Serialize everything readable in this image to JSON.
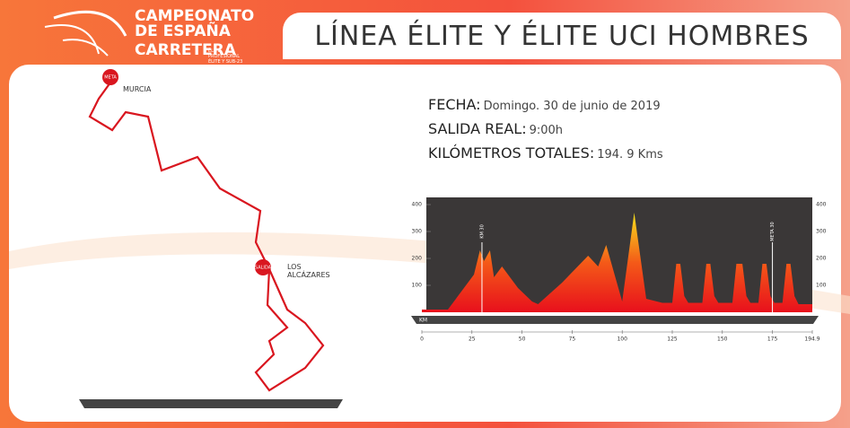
{
  "header": {
    "brand_line1": "CAMPEONATO",
    "brand_line2": "DE ESPAÑA",
    "brand_line3": "CARRETERA",
    "brand_sub": "ÉLITE PROFESIONAL ÉLITE Y SUB-23",
    "title": "LÍNEA ÉLITE Y ÉLITE UCI HOMBRES"
  },
  "info": [
    {
      "label": "FECHA:",
      "value": "Domingo. 30 de junio de 2019"
    },
    {
      "label": "SALIDA REAL:",
      "value": "9:00h"
    },
    {
      "label": "KILÓMETROS TOTALES:",
      "value": "194. 9 Kms"
    }
  ],
  "map": {
    "finish_marker": "META",
    "finish_city": "MURCIA",
    "start_marker": "SALIDA",
    "start_city": "LOS ALCÁZARES"
  },
  "chart_data": {
    "type": "area",
    "axis_label": "KM",
    "x": [
      0,
      2,
      13,
      22,
      26,
      29,
      31,
      34,
      36,
      40,
      48,
      55,
      58,
      70,
      83,
      88,
      92,
      100,
      106,
      112,
      120,
      125,
      127,
      129,
      131,
      133,
      140,
      142,
      144,
      146,
      148,
      155,
      157,
      160,
      162,
      164,
      168,
      170,
      172,
      174,
      176,
      180,
      182,
      184,
      186,
      188,
      194.9
    ],
    "values": [
      10,
      10,
      10,
      100,
      140,
      230,
      190,
      230,
      130,
      170,
      90,
      40,
      30,
      110,
      210,
      170,
      250,
      40,
      370,
      50,
      35,
      35,
      180,
      180,
      60,
      35,
      35,
      180,
      180,
      60,
      35,
      35,
      180,
      180,
      60,
      35,
      35,
      180,
      180,
      60,
      35,
      35,
      180,
      180,
      60,
      30,
      30
    ],
    "xlim": [
      0,
      194.9
    ],
    "xticks": [
      0,
      25,
      50,
      75,
      100,
      125,
      150,
      175,
      194.9
    ],
    "ylim": [
      0,
      420
    ],
    "yticks": [
      100,
      200,
      300,
      400
    ],
    "annotations": [
      {
        "x": 30,
        "label": "KM 30"
      },
      {
        "x": 175,
        "label": "META 30"
      }
    ]
  }
}
